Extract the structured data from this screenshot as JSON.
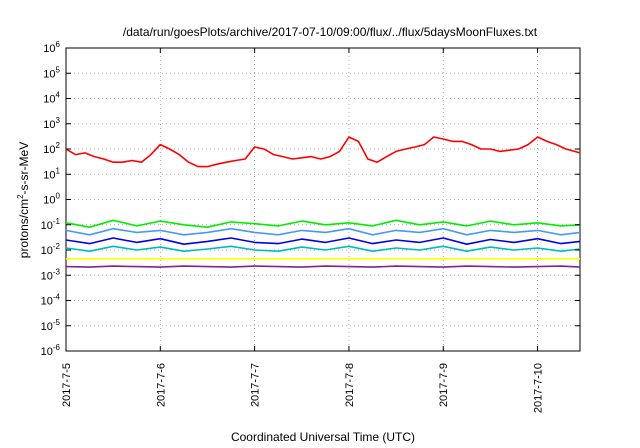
{
  "chart_data": {
    "type": "line",
    "title": "/data/run/goesPlots/archive/2017-07-10/09:00/flux/../flux/5daysMoonFluxes.txt",
    "xlabel": "Coordinated Universal Time (UTC)",
    "ylabel": {
      "base": "protons/cm",
      "sup": "2",
      "rest": "-s-sr-MeV"
    },
    "y_scale": "log",
    "ylim_exponents": [
      -6,
      6
    ],
    "y_ticks": [
      {
        "base": "10",
        "exp": "-6"
      },
      {
        "base": "10",
        "exp": "-5"
      },
      {
        "base": "10",
        "exp": "-4"
      },
      {
        "base": "10",
        "exp": "-3"
      },
      {
        "base": "10",
        "exp": "-2"
      },
      {
        "base": "10",
        "exp": "-1"
      },
      {
        "base": "10",
        "exp": "0"
      },
      {
        "base": "10",
        "exp": "1"
      },
      {
        "base": "10",
        "exp": "2"
      },
      {
        "base": "10",
        "exp": "3"
      },
      {
        "base": "10",
        "exp": "4"
      },
      {
        "base": "10",
        "exp": "5"
      },
      {
        "base": "10",
        "exp": "6"
      }
    ],
    "x_ticks": [
      "2017-7-5",
      "2017-7-6",
      "2017-7-7",
      "2017-7-8",
      "2017-7-9",
      "2017-7-10"
    ],
    "x_range_days": [
      0,
      5.45
    ],
    "grid": true,
    "legend": "none",
    "series": [
      {
        "color": "#ff0000",
        "x": [
          0.0,
          0.1,
          0.2,
          0.3,
          0.4,
          0.5,
          0.6,
          0.7,
          0.8,
          0.9,
          1.0,
          1.1,
          1.2,
          1.3,
          1.4,
          1.5,
          1.6,
          1.7,
          1.8,
          1.9,
          2.0,
          2.1,
          2.2,
          2.3,
          2.4,
          2.5,
          2.6,
          2.7,
          2.8,
          2.9,
          3.0,
          3.1,
          3.2,
          3.3,
          3.4,
          3.5,
          3.6,
          3.7,
          3.8,
          3.9,
          4.0,
          4.1,
          4.2,
          4.3,
          4.4,
          4.5,
          4.6,
          4.7,
          4.8,
          4.9,
          5.0,
          5.1,
          5.2,
          5.3,
          5.45
        ],
        "y": [
          100,
          60,
          70,
          50,
          40,
          30,
          30,
          35,
          30,
          60,
          150,
          100,
          60,
          30,
          20,
          20,
          25,
          30,
          35,
          40,
          120,
          100,
          60,
          50,
          40,
          45,
          50,
          40,
          50,
          80,
          300,
          200,
          40,
          30,
          50,
          80,
          100,
          120,
          150,
          300,
          250,
          200,
          200,
          150,
          100,
          100,
          80,
          90,
          100,
          150,
          300,
          200,
          150,
          100,
          70
        ]
      },
      {
        "color": "#00ee00",
        "x": [
          0.0,
          0.25,
          0.5,
          0.75,
          1.0,
          1.25,
          1.5,
          1.75,
          2.0,
          2.25,
          2.5,
          2.75,
          3.0,
          3.25,
          3.5,
          3.75,
          4.0,
          4.25,
          4.5,
          4.75,
          5.0,
          5.25,
          5.45
        ],
        "y": [
          0.12,
          0.08,
          0.15,
          0.09,
          0.14,
          0.1,
          0.08,
          0.13,
          0.11,
          0.09,
          0.14,
          0.1,
          0.12,
          0.09,
          0.15,
          0.1,
          0.13,
          0.09,
          0.14,
          0.1,
          0.12,
          0.09,
          0.1
        ]
      },
      {
        "color": "#4499ff",
        "x": [
          0.0,
          0.25,
          0.5,
          0.75,
          1.0,
          1.25,
          1.5,
          1.75,
          2.0,
          2.25,
          2.5,
          2.75,
          3.0,
          3.25,
          3.5,
          3.75,
          4.0,
          4.25,
          4.5,
          4.75,
          5.0,
          5.25,
          5.45
        ],
        "y": [
          0.06,
          0.04,
          0.07,
          0.05,
          0.06,
          0.04,
          0.05,
          0.07,
          0.05,
          0.04,
          0.06,
          0.05,
          0.07,
          0.04,
          0.06,
          0.05,
          0.07,
          0.04,
          0.06,
          0.05,
          0.06,
          0.04,
          0.05
        ]
      },
      {
        "color": "#0000ee",
        "x": [
          0.0,
          0.25,
          0.5,
          0.75,
          1.0,
          1.25,
          1.5,
          1.75,
          2.0,
          2.25,
          2.5,
          2.75,
          3.0,
          3.25,
          3.5,
          3.75,
          4.0,
          4.25,
          4.5,
          4.75,
          5.0,
          5.25,
          5.45
        ],
        "y": [
          0.025,
          0.018,
          0.03,
          0.02,
          0.028,
          0.017,
          0.022,
          0.03,
          0.02,
          0.018,
          0.027,
          0.02,
          0.03,
          0.018,
          0.025,
          0.02,
          0.03,
          0.017,
          0.026,
          0.02,
          0.028,
          0.018,
          0.022
        ]
      },
      {
        "color": "#00bbbb",
        "x": [
          0.0,
          0.25,
          0.5,
          0.75,
          1.0,
          1.25,
          1.5,
          1.75,
          2.0,
          2.25,
          2.5,
          2.75,
          3.0,
          3.25,
          3.5,
          3.75,
          4.0,
          4.25,
          4.5,
          4.75,
          5.0,
          5.25,
          5.45
        ],
        "y": [
          0.012,
          0.009,
          0.014,
          0.01,
          0.013,
          0.009,
          0.011,
          0.014,
          0.01,
          0.009,
          0.013,
          0.01,
          0.014,
          0.009,
          0.012,
          0.01,
          0.014,
          0.009,
          0.013,
          0.01,
          0.012,
          0.009,
          0.011
        ]
      },
      {
        "color": "#ffff00",
        "x": [
          0.0,
          0.5,
          1.0,
          1.5,
          2.0,
          2.5,
          3.0,
          3.5,
          4.0,
          4.5,
          5.0,
          5.45
        ],
        "y": [
          0.0045,
          0.0045,
          0.0045,
          0.0045,
          0.0045,
          0.0045,
          0.0045,
          0.0045,
          0.0045,
          0.0045,
          0.0045,
          0.0045
        ]
      },
      {
        "color": "#882288",
        "x": [
          0.0,
          0.25,
          0.5,
          0.75,
          1.0,
          1.25,
          1.5,
          1.75,
          2.0,
          2.25,
          2.5,
          2.75,
          3.0,
          3.25,
          3.5,
          3.75,
          4.0,
          4.25,
          4.5,
          4.75,
          5.0,
          5.25,
          5.45
        ],
        "y": [
          0.0022,
          0.0021,
          0.0023,
          0.0022,
          0.0021,
          0.0023,
          0.0022,
          0.0021,
          0.0023,
          0.0022,
          0.0021,
          0.0023,
          0.0022,
          0.0021,
          0.0023,
          0.0022,
          0.0021,
          0.0023,
          0.0022,
          0.0021,
          0.0022,
          0.0023,
          0.0021
        ]
      }
    ]
  }
}
